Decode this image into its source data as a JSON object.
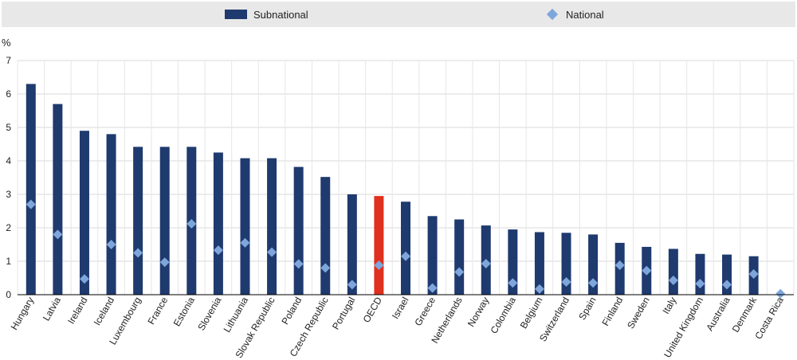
{
  "legend": {
    "items": [
      {
        "label": "Subnational",
        "color": "#1f3a6e",
        "shape": "bar"
      },
      {
        "label": "National",
        "color": "#7ea6dc",
        "shape": "diamond"
      }
    ]
  },
  "chart_data": {
    "type": "bar",
    "ylabel": "%",
    "ylim": [
      0,
      7
    ],
    "yticks": [
      0,
      1,
      2,
      3,
      4,
      5,
      6,
      7
    ],
    "highlight_category": "OECD",
    "highlight_color": "#e0301e",
    "categories": [
      "Hungary",
      "Latvia",
      "Ireland",
      "Iceland",
      "Luxembourg",
      "France",
      "Estonia",
      "Slovenia",
      "Lithuania",
      "Slovak Republic",
      "Poland",
      "Czech Republic",
      "Portugal",
      "OECD",
      "Israel",
      "Greece",
      "Netherlands",
      "Norway",
      "Colombia",
      "Belgium",
      "Switzerland",
      "Spain",
      "Finland",
      "Sweden",
      "Italy",
      "United Kingdom",
      "Australia",
      "Denmark",
      "Costa Rica"
    ],
    "series": [
      {
        "name": "Subnational",
        "type": "bar",
        "color": "#1f3a6e",
        "values": [
          6.3,
          5.7,
          4.9,
          4.8,
          4.42,
          4.42,
          4.42,
          4.25,
          4.08,
          4.08,
          3.82,
          3.52,
          3.0,
          2.95,
          2.78,
          2.35,
          2.25,
          2.07,
          1.95,
          1.87,
          1.85,
          1.8,
          1.55,
          1.43,
          1.37,
          1.22,
          1.2,
          1.15,
          0.0
        ]
      },
      {
        "name": "National",
        "type": "diamond",
        "color": "#7ea6dc",
        "values": [
          2.7,
          1.8,
          0.47,
          1.5,
          1.25,
          0.97,
          2.12,
          1.33,
          1.55,
          1.27,
          0.92,
          0.8,
          0.3,
          0.88,
          1.15,
          0.2,
          0.68,
          0.93,
          0.35,
          0.17,
          0.38,
          0.35,
          0.88,
          0.72,
          0.43,
          0.33,
          0.3,
          0.62,
          0.03
        ]
      }
    ]
  }
}
